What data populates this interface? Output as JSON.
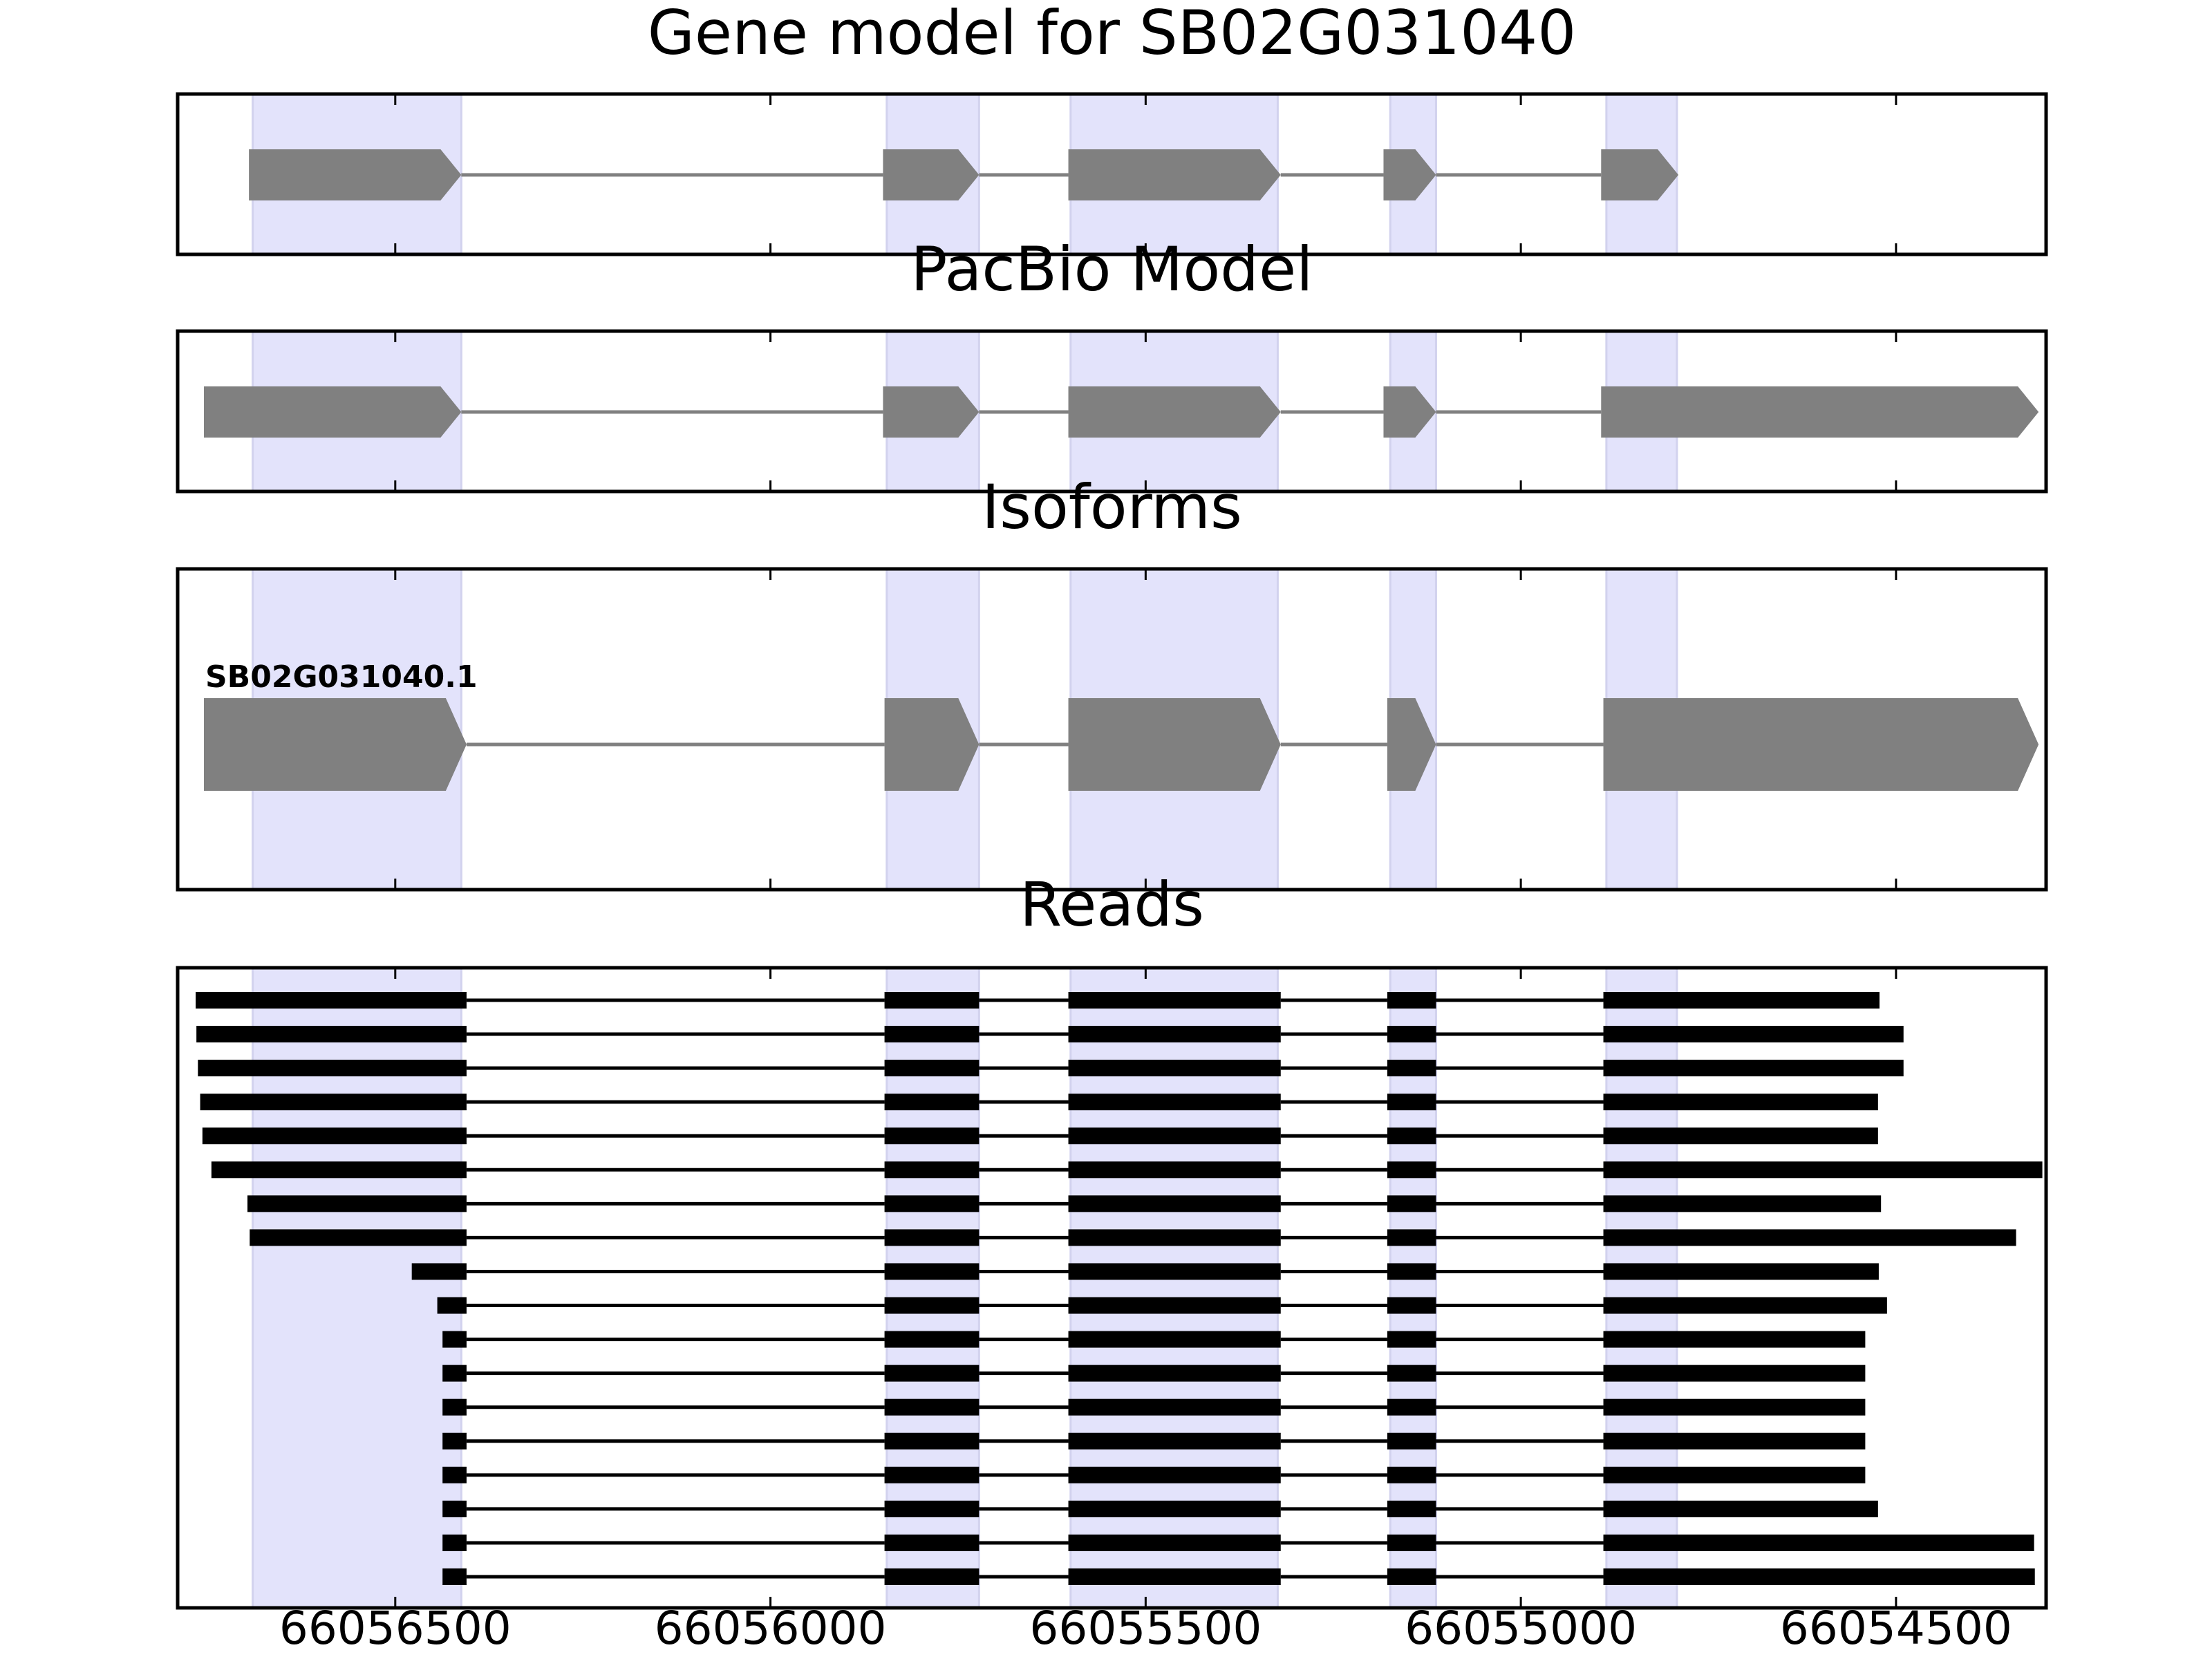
{
  "chart_data": {
    "type": "gene-structure",
    "x_axis": {
      "reversed": true,
      "xlim": [
        66056790,
        66054300
      ],
      "ticks": [
        66056500,
        66056000,
        66055500,
        66055000,
        66054500
      ],
      "tick_labels": [
        "66056500",
        "66056000",
        "66055500",
        "66055000",
        "66054500"
      ]
    },
    "highlight_color": "#e3e3fb",
    "highlight_regions": [
      [
        66056690,
        66056412
      ],
      [
        66055845,
        66055722
      ],
      [
        66055600,
        66055324
      ],
      [
        66055174,
        66055113
      ],
      [
        66054886,
        66054792
      ]
    ],
    "panels": [
      {
        "title": "Gene model for SB02G031040",
        "tracks": [
          {
            "label": "",
            "exons": [
              [
                66056695,
                66056412
              ],
              [
                66055850,
                66055722
              ],
              [
                66055603,
                66055320
              ],
              [
                66055183,
                66055113
              ],
              [
                66054893,
                66054790
              ]
            ],
            "color": "#808080"
          }
        ]
      },
      {
        "title": "PacBio Model",
        "tracks": [
          {
            "label": "",
            "exons": [
              [
                66056755,
                66056412
              ],
              [
                66055850,
                66055722
              ],
              [
                66055603,
                66055320
              ],
              [
                66055183,
                66055113
              ],
              [
                66054893,
                66054310
              ]
            ],
            "color": "#808080"
          }
        ]
      },
      {
        "title": "Isoforms",
        "tracks": [
          {
            "label": "SB02G031040.1",
            "exons": [
              [
                66056755,
                66056405
              ],
              [
                66055848,
                66055722
              ],
              [
                66055603,
                66055320
              ],
              [
                66055178,
                66055113
              ],
              [
                66054890,
                66054310
              ]
            ],
            "color": "#808080"
          }
        ]
      },
      {
        "title": "Reads",
        "tracks": [
          {
            "exons": [
              [
                66056766,
                66056405
              ],
              [
                66055848,
                66055722
              ],
              [
                66055603,
                66055320
              ],
              [
                66055178,
                66055113
              ],
              [
                66054890,
                66054522
              ]
            ]
          },
          {
            "exons": [
              [
                66056765,
                66056405
              ],
              [
                66055848,
                66055722
              ],
              [
                66055603,
                66055320
              ],
              [
                66055178,
                66055113
              ],
              [
                66054890,
                66054490
              ]
            ]
          },
          {
            "exons": [
              [
                66056763,
                66056405
              ],
              [
                66055848,
                66055722
              ],
              [
                66055603,
                66055320
              ],
              [
                66055178,
                66055113
              ],
              [
                66054890,
                66054490
              ]
            ]
          },
          {
            "exons": [
              [
                66056760,
                66056405
              ],
              [
                66055848,
                66055722
              ],
              [
                66055603,
                66055320
              ],
              [
                66055178,
                66055113
              ],
              [
                66054890,
                66054524
              ]
            ]
          },
          {
            "exons": [
              [
                66056757,
                66056405
              ],
              [
                66055848,
                66055722
              ],
              [
                66055603,
                66055320
              ],
              [
                66055178,
                66055113
              ],
              [
                66054890,
                66054524
              ]
            ]
          },
          {
            "exons": [
              [
                66056745,
                66056405
              ],
              [
                66055848,
                66055722
              ],
              [
                66055603,
                66055320
              ],
              [
                66055178,
                66055113
              ],
              [
                66054890,
                66054305
              ]
            ]
          },
          {
            "exons": [
              [
                66056697,
                66056405
              ],
              [
                66055848,
                66055722
              ],
              [
                66055603,
                66055320
              ],
              [
                66055178,
                66055113
              ],
              [
                66054890,
                66054520
              ]
            ]
          },
          {
            "exons": [
              [
                66056694,
                66056405
              ],
              [
                66055848,
                66055722
              ],
              [
                66055603,
                66055320
              ],
              [
                66055178,
                66055113
              ],
              [
                66054890,
                66054340
              ]
            ]
          },
          {
            "exons": [
              [
                66056478,
                66056405
              ],
              [
                66055848,
                66055722
              ],
              [
                66055603,
                66055320
              ],
              [
                66055178,
                66055113
              ],
              [
                66054890,
                66054523
              ]
            ]
          },
          {
            "exons": [
              [
                66056444,
                66056405
              ],
              [
                66055848,
                66055722
              ],
              [
                66055603,
                66055320
              ],
              [
                66055178,
                66055113
              ],
              [
                66054890,
                66054512
              ]
            ]
          },
          {
            "exons": [
              [
                66056437,
                66056405
              ],
              [
                66055848,
                66055722
              ],
              [
                66055603,
                66055320
              ],
              [
                66055178,
                66055113
              ],
              [
                66054890,
                66054541
              ]
            ]
          },
          {
            "exons": [
              [
                66056437,
                66056405
              ],
              [
                66055848,
                66055722
              ],
              [
                66055603,
                66055320
              ],
              [
                66055178,
                66055113
              ],
              [
                66054890,
                66054541
              ]
            ]
          },
          {
            "exons": [
              [
                66056437,
                66056405
              ],
              [
                66055848,
                66055722
              ],
              [
                66055603,
                66055320
              ],
              [
                66055178,
                66055113
              ],
              [
                66054890,
                66054541
              ]
            ]
          },
          {
            "exons": [
              [
                66056437,
                66056405
              ],
              [
                66055848,
                66055722
              ],
              [
                66055603,
                66055320
              ],
              [
                66055178,
                66055113
              ],
              [
                66054890,
                66054541
              ]
            ]
          },
          {
            "exons": [
              [
                66056437,
                66056405
              ],
              [
                66055848,
                66055722
              ],
              [
                66055603,
                66055320
              ],
              [
                66055178,
                66055113
              ],
              [
                66054890,
                66054541
              ]
            ]
          },
          {
            "exons": [
              [
                66056437,
                66056405
              ],
              [
                66055848,
                66055722
              ],
              [
                66055603,
                66055320
              ],
              [
                66055178,
                66055113
              ],
              [
                66054890,
                66054524
              ]
            ]
          },
          {
            "exons": [
              [
                66056437,
                66056405
              ],
              [
                66055848,
                66055722
              ],
              [
                66055603,
                66055320
              ],
              [
                66055178,
                66055113
              ],
              [
                66054890,
                66054316
              ]
            ]
          },
          {
            "exons": [
              [
                66056437,
                66056405
              ],
              [
                66055848,
                66055722
              ],
              [
                66055603,
                66055320
              ],
              [
                66055178,
                66055113
              ],
              [
                66054890,
                66054315
              ]
            ]
          }
        ]
      }
    ]
  }
}
